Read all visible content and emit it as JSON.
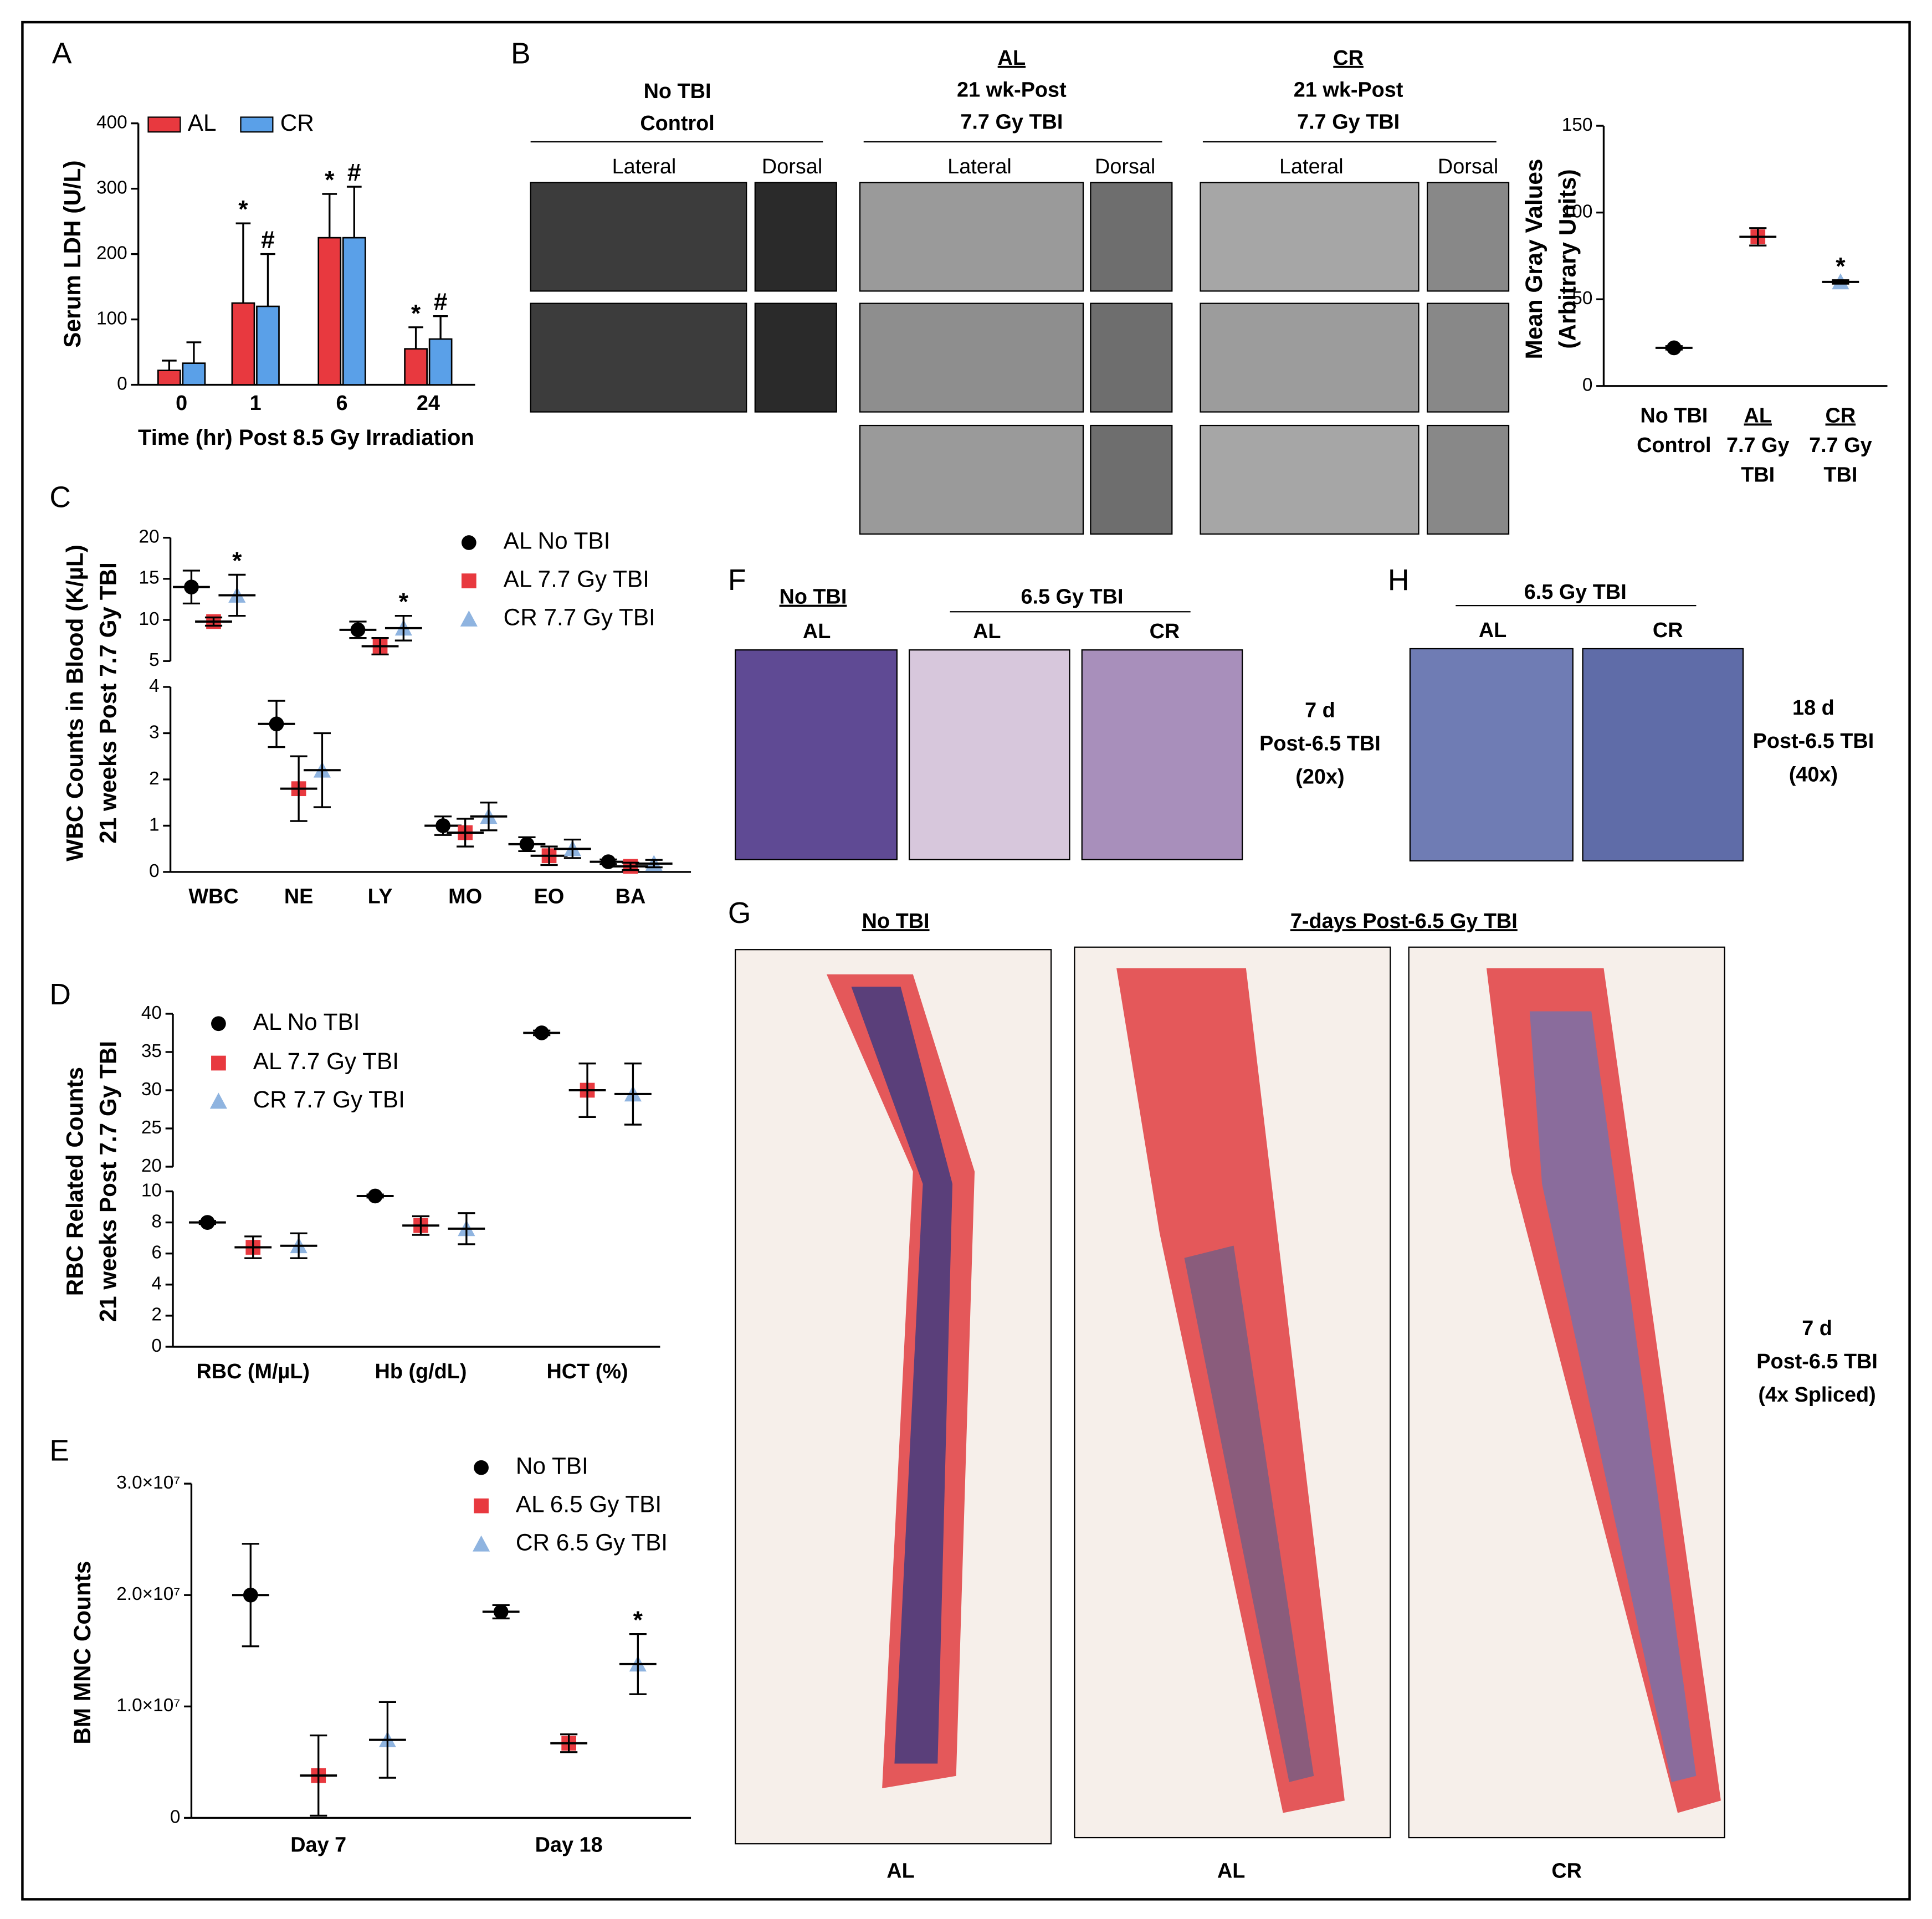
{
  "chart_data": [
    {
      "type": "bar",
      "panel": "A",
      "ylabel": "Serum LDH (U/L)",
      "xlabel": "Time (hr) Post 8.5 Gy Irradiation",
      "categories": [
        "0",
        "1",
        "6",
        "24"
      ],
      "ylim": [
        0,
        400
      ],
      "yticks": [
        0,
        100,
        200,
        300,
        400
      ],
      "series": [
        {
          "name": "AL",
          "color": "#e8393f",
          "values": [
            22,
            125,
            225,
            55
          ],
          "errors": [
            15,
            122,
            67,
            33
          ],
          "significance": [
            null,
            "*",
            "*",
            "*"
          ]
        },
        {
          "name": "CR",
          "color": "#5aa0e8",
          "values": [
            33,
            120,
            225,
            70
          ],
          "errors": [
            32,
            80,
            78,
            35
          ],
          "significance": [
            null,
            "#",
            "#",
            "#"
          ]
        }
      ]
    },
    {
      "type": "dot",
      "ylabel": [
        "Mean Gray Values",
        "(Arbitrary Units)"
      ],
      "categories": [
        [
          "No TBI",
          "Control"
        ],
        [
          "AL",
          "7.7 Gy",
          "TBI"
        ],
        [
          "CR",
          "7.7 Gy",
          "TBI"
        ]
      ],
      "ylim": [
        0,
        150
      ],
      "yticks": [
        0,
        50,
        100,
        150
      ],
      "values": [
        22,
        86,
        60
      ],
      "errors": [
        1,
        5,
        1
      ],
      "colors": [
        "#000000",
        "#e8393f",
        "#8fb4e0"
      ],
      "markers": [
        "circle",
        "square",
        "triangle"
      ],
      "significance": [
        null,
        null,
        "*"
      ]
    },
    {
      "type": "dot",
      "panel": "C",
      "ylabel": [
        "WBC Counts in Blood (K/µL)",
        "21 weeks Post 7.7 Gy TBI"
      ],
      "categories": [
        "WBC",
        "NE",
        "LY",
        "MO",
        "EO",
        "BA"
      ],
      "ylim_segments": [
        [
          0,
          4
        ],
        [
          5,
          20
        ]
      ],
      "yticks": [
        0,
        1,
        2,
        3,
        4,
        5,
        10,
        15,
        20
      ],
      "series": [
        {
          "name": "AL No TBI",
          "color": "#000000",
          "marker": "circle",
          "values": [
            14,
            3.2,
            8.8,
            1.0,
            0.6,
            0.22
          ],
          "errors": [
            2,
            0.5,
            1,
            0.2,
            0.15,
            0.05
          ]
        },
        {
          "name": "AL 7.7 Gy TBI",
          "color": "#e8393f",
          "marker": "square",
          "values": [
            9.8,
            1.8,
            6.8,
            0.85,
            0.35,
            0.12
          ],
          "errors": [
            0.5,
            0.7,
            1,
            0.3,
            0.2,
            0.08
          ]
        },
        {
          "name": "CR 7.7 Gy TBI",
          "color": "#8fb4e0",
          "marker": "triangle",
          "values": [
            13,
            2.2,
            9,
            1.2,
            0.5,
            0.18
          ],
          "errors": [
            2.5,
            0.8,
            1.5,
            0.3,
            0.2,
            0.08
          ],
          "significance": [
            "*",
            null,
            "*",
            null,
            null,
            null
          ]
        }
      ]
    },
    {
      "type": "dot",
      "panel": "D",
      "ylabel": [
        "RBC Related Counts",
        "21 weeks Post 7.7 Gy TBI"
      ],
      "categories": [
        "RBC (M/µL)",
        "Hb (g/dL)",
        "HCT (%)"
      ],
      "ylim_segments": [
        [
          0,
          10
        ],
        [
          20,
          40
        ]
      ],
      "yticks": [
        0,
        2,
        4,
        6,
        8,
        10,
        20,
        25,
        30,
        35,
        40
      ],
      "series": [
        {
          "name": "AL No TBI",
          "color": "#000000",
          "marker": "circle",
          "values": [
            8.0,
            9.7,
            37.5
          ],
          "errors": [
            0.1,
            0.1,
            0.3
          ]
        },
        {
          "name": "AL 7.7 Gy TBI",
          "color": "#e8393f",
          "marker": "square",
          "values": [
            6.4,
            7.8,
            30
          ],
          "errors": [
            0.7,
            0.6,
            3.5
          ]
        },
        {
          "name": "CR 7.7 Gy TBI",
          "color": "#8fb4e0",
          "marker": "triangle",
          "values": [
            6.5,
            7.6,
            29.5
          ],
          "errors": [
            0.8,
            1.0,
            4
          ]
        }
      ]
    },
    {
      "type": "dot",
      "panel": "E",
      "ylabel": "BM MNC Counts",
      "categories": [
        "Day 7",
        "Day 18"
      ],
      "ylim": [
        0,
        30000000
      ],
      "yticks": [
        0,
        {
          "value": 10000000,
          "label": "1.0×10⁷"
        },
        {
          "value": 20000000,
          "label": "2.0×10⁷"
        },
        {
          "value": 30000000,
          "label": "3.0×10⁷"
        }
      ],
      "series": [
        {
          "name": "No TBI",
          "color": "#000000",
          "marker": "circle",
          "values": [
            20000000,
            18500000
          ],
          "errors": [
            4600000,
            600000
          ]
        },
        {
          "name": "AL 6.5 Gy TBI",
          "color": "#e8393f",
          "marker": "square",
          "values": [
            3800000,
            6700000
          ],
          "errors": [
            3600000,
            800000
          ]
        },
        {
          "name": "CR 6.5 Gy TBI",
          "color": "#8fb4e0",
          "marker": "triangle",
          "values": [
            7000000,
            13800000
          ],
          "errors": [
            3400000,
            2700000
          ],
          "significance": [
            null,
            "*"
          ]
        }
      ]
    }
  ],
  "photo_panels": {
    "B": {
      "letter": "B",
      "groups": [
        {
          "title": [
            "No TBI",
            "Control"
          ],
          "views": [
            "Lateral",
            "Dorsal"
          ]
        },
        {
          "title": [
            "AL",
            "21 wk-Post",
            "7.7 Gy TBI"
          ],
          "views": [
            "Lateral",
            "Dorsal"
          ]
        },
        {
          "title": [
            "CR",
            "21 wk-Post",
            "7.7 Gy TBI"
          ],
          "views": [
            "Lateral",
            "Dorsal"
          ]
        }
      ]
    },
    "F": {
      "letter": "F",
      "headers": [
        "No TBI",
        "6.5 Gy TBI"
      ],
      "columns": [
        "AL",
        "AL",
        "CR"
      ],
      "note": [
        "7 d",
        "Post-6.5 TBI",
        "(20x)"
      ]
    },
    "H": {
      "letter": "H",
      "header": "6.5 Gy TBI",
      "columns": [
        "AL",
        "CR"
      ],
      "note": [
        "18 d",
        "Post-6.5 TBI",
        "(40x)"
      ]
    },
    "G": {
      "letter": "G",
      "headers": [
        "No TBI",
        "7-days Post-6.5 Gy TBI"
      ],
      "columns": [
        "AL",
        "AL",
        "CR"
      ],
      "note": [
        "7 d",
        "Post-6.5 TBI",
        "(4x Spliced)"
      ]
    }
  }
}
